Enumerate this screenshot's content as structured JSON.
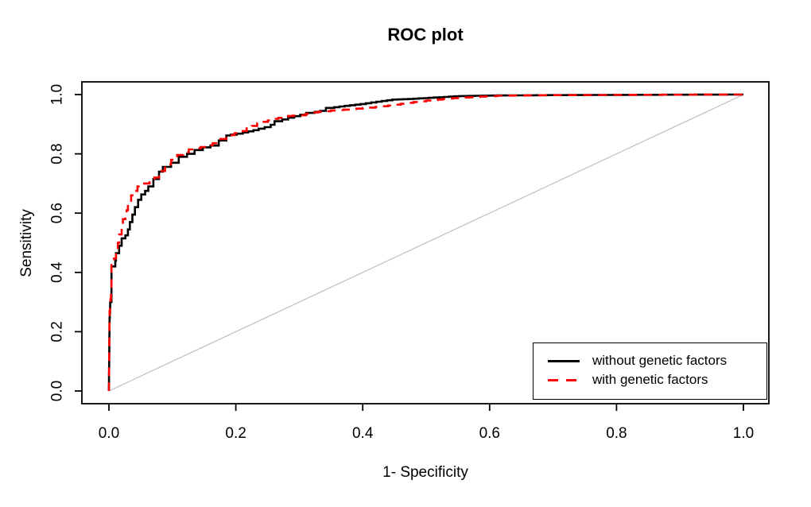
{
  "chart_data": {
    "type": "line",
    "title": "ROC plot",
    "xlabel": "1- Specificity",
    "ylabel": "Sensitivity",
    "xlim": [
      0,
      1
    ],
    "ylim": [
      0,
      1
    ],
    "grid": false,
    "x_tick_labels": [
      "0.0",
      "0.2",
      "0.4",
      "0.6",
      "0.8",
      "1.0"
    ],
    "y_tick_labels": [
      "0.0",
      "0.2",
      "0.4",
      "0.6",
      "0.8",
      "1.0"
    ],
    "reference_line": {
      "description": "chance diagonal from (0,0) to (1,1)",
      "color": "#BEBEBE"
    },
    "legend": {
      "position": "bottom-right",
      "entries": [
        {
          "label": "without genetic factors",
          "color": "#000000",
          "style": "solid"
        },
        {
          "label": "with genetic factors",
          "color": "#FF0000",
          "style": "dashed"
        }
      ]
    },
    "series": [
      {
        "name": "without genetic factors",
        "color": "#000000",
        "style": "solid",
        "points": [
          [
            0.0,
            0.0
          ],
          [
            0.001,
            0.23
          ],
          [
            0.002,
            0.28
          ],
          [
            0.004,
            0.3
          ],
          [
            0.004,
            0.41
          ],
          [
            0.01,
            0.42
          ],
          [
            0.011,
            0.44
          ],
          [
            0.016,
            0.465
          ],
          [
            0.02,
            0.49
          ],
          [
            0.026,
            0.515
          ],
          [
            0.03,
            0.525
          ],
          [
            0.033,
            0.545
          ],
          [
            0.037,
            0.57
          ],
          [
            0.041,
            0.595
          ],
          [
            0.046,
            0.62
          ],
          [
            0.051,
            0.645
          ],
          [
            0.057,
            0.663
          ],
          [
            0.062,
            0.675
          ],
          [
            0.07,
            0.69
          ],
          [
            0.079,
            0.715
          ],
          [
            0.085,
            0.74
          ],
          [
            0.098,
            0.756
          ],
          [
            0.11,
            0.77
          ],
          [
            0.123,
            0.79
          ],
          [
            0.135,
            0.8
          ],
          [
            0.148,
            0.813
          ],
          [
            0.16,
            0.822
          ],
          [
            0.173,
            0.828
          ],
          [
            0.185,
            0.845
          ],
          [
            0.192,
            0.862
          ],
          [
            0.211,
            0.868
          ],
          [
            0.236,
            0.88
          ],
          [
            0.255,
            0.89
          ],
          [
            0.261,
            0.898
          ],
          [
            0.273,
            0.91
          ],
          [
            0.292,
            0.922
          ],
          [
            0.311,
            0.932
          ],
          [
            0.324,
            0.938
          ],
          [
            0.342,
            0.945
          ],
          [
            0.355,
            0.955
          ],
          [
            0.38,
            0.962
          ],
          [
            0.405,
            0.968
          ],
          [
            0.43,
            0.976
          ],
          [
            0.455,
            0.983
          ],
          [
            0.48,
            0.985
          ],
          [
            0.52,
            0.99
          ],
          [
            0.56,
            0.995
          ],
          [
            0.62,
            0.997
          ],
          [
            0.7,
            0.998
          ],
          [
            0.82,
            0.999
          ],
          [
            1.0,
            1.0
          ]
        ]
      },
      {
        "name": "with genetic factors",
        "color": "#FF0000",
        "style": "dashed",
        "points": [
          [
            0.0,
            0.0
          ],
          [
            0.001,
            0.25
          ],
          [
            0.004,
            0.33
          ],
          [
            0.004,
            0.42
          ],
          [
            0.008,
            0.43
          ],
          [
            0.011,
            0.447
          ],
          [
            0.014,
            0.474
          ],
          [
            0.016,
            0.5
          ],
          [
            0.02,
            0.528
          ],
          [
            0.022,
            0.555
          ],
          [
            0.026,
            0.58
          ],
          [
            0.03,
            0.61
          ],
          [
            0.035,
            0.635
          ],
          [
            0.039,
            0.66
          ],
          [
            0.051,
            0.69
          ],
          [
            0.064,
            0.7
          ],
          [
            0.079,
            0.72
          ],
          [
            0.098,
            0.764
          ],
          [
            0.117,
            0.796
          ],
          [
            0.135,
            0.815
          ],
          [
            0.154,
            0.823
          ],
          [
            0.173,
            0.836
          ],
          [
            0.185,
            0.85
          ],
          [
            0.198,
            0.863
          ],
          [
            0.217,
            0.877
          ],
          [
            0.242,
            0.903
          ],
          [
            0.267,
            0.918
          ],
          [
            0.29,
            0.928
          ],
          [
            0.31,
            0.93
          ],
          [
            0.33,
            0.94
          ],
          [
            0.36,
            0.946
          ],
          [
            0.39,
            0.951
          ],
          [
            0.42,
            0.956
          ],
          [
            0.45,
            0.963
          ],
          [
            0.48,
            0.972
          ],
          [
            0.51,
            0.98
          ],
          [
            0.55,
            0.988
          ],
          [
            0.62,
            0.996
          ],
          [
            0.7,
            0.998
          ],
          [
            0.82,
            0.999
          ],
          [
            1.0,
            1.0
          ]
        ]
      }
    ],
    "colors": {
      "axis": "#000000",
      "series_without": "#000000",
      "series_with": "#FF0000",
      "diagonal": "#BEBEBE"
    }
  }
}
